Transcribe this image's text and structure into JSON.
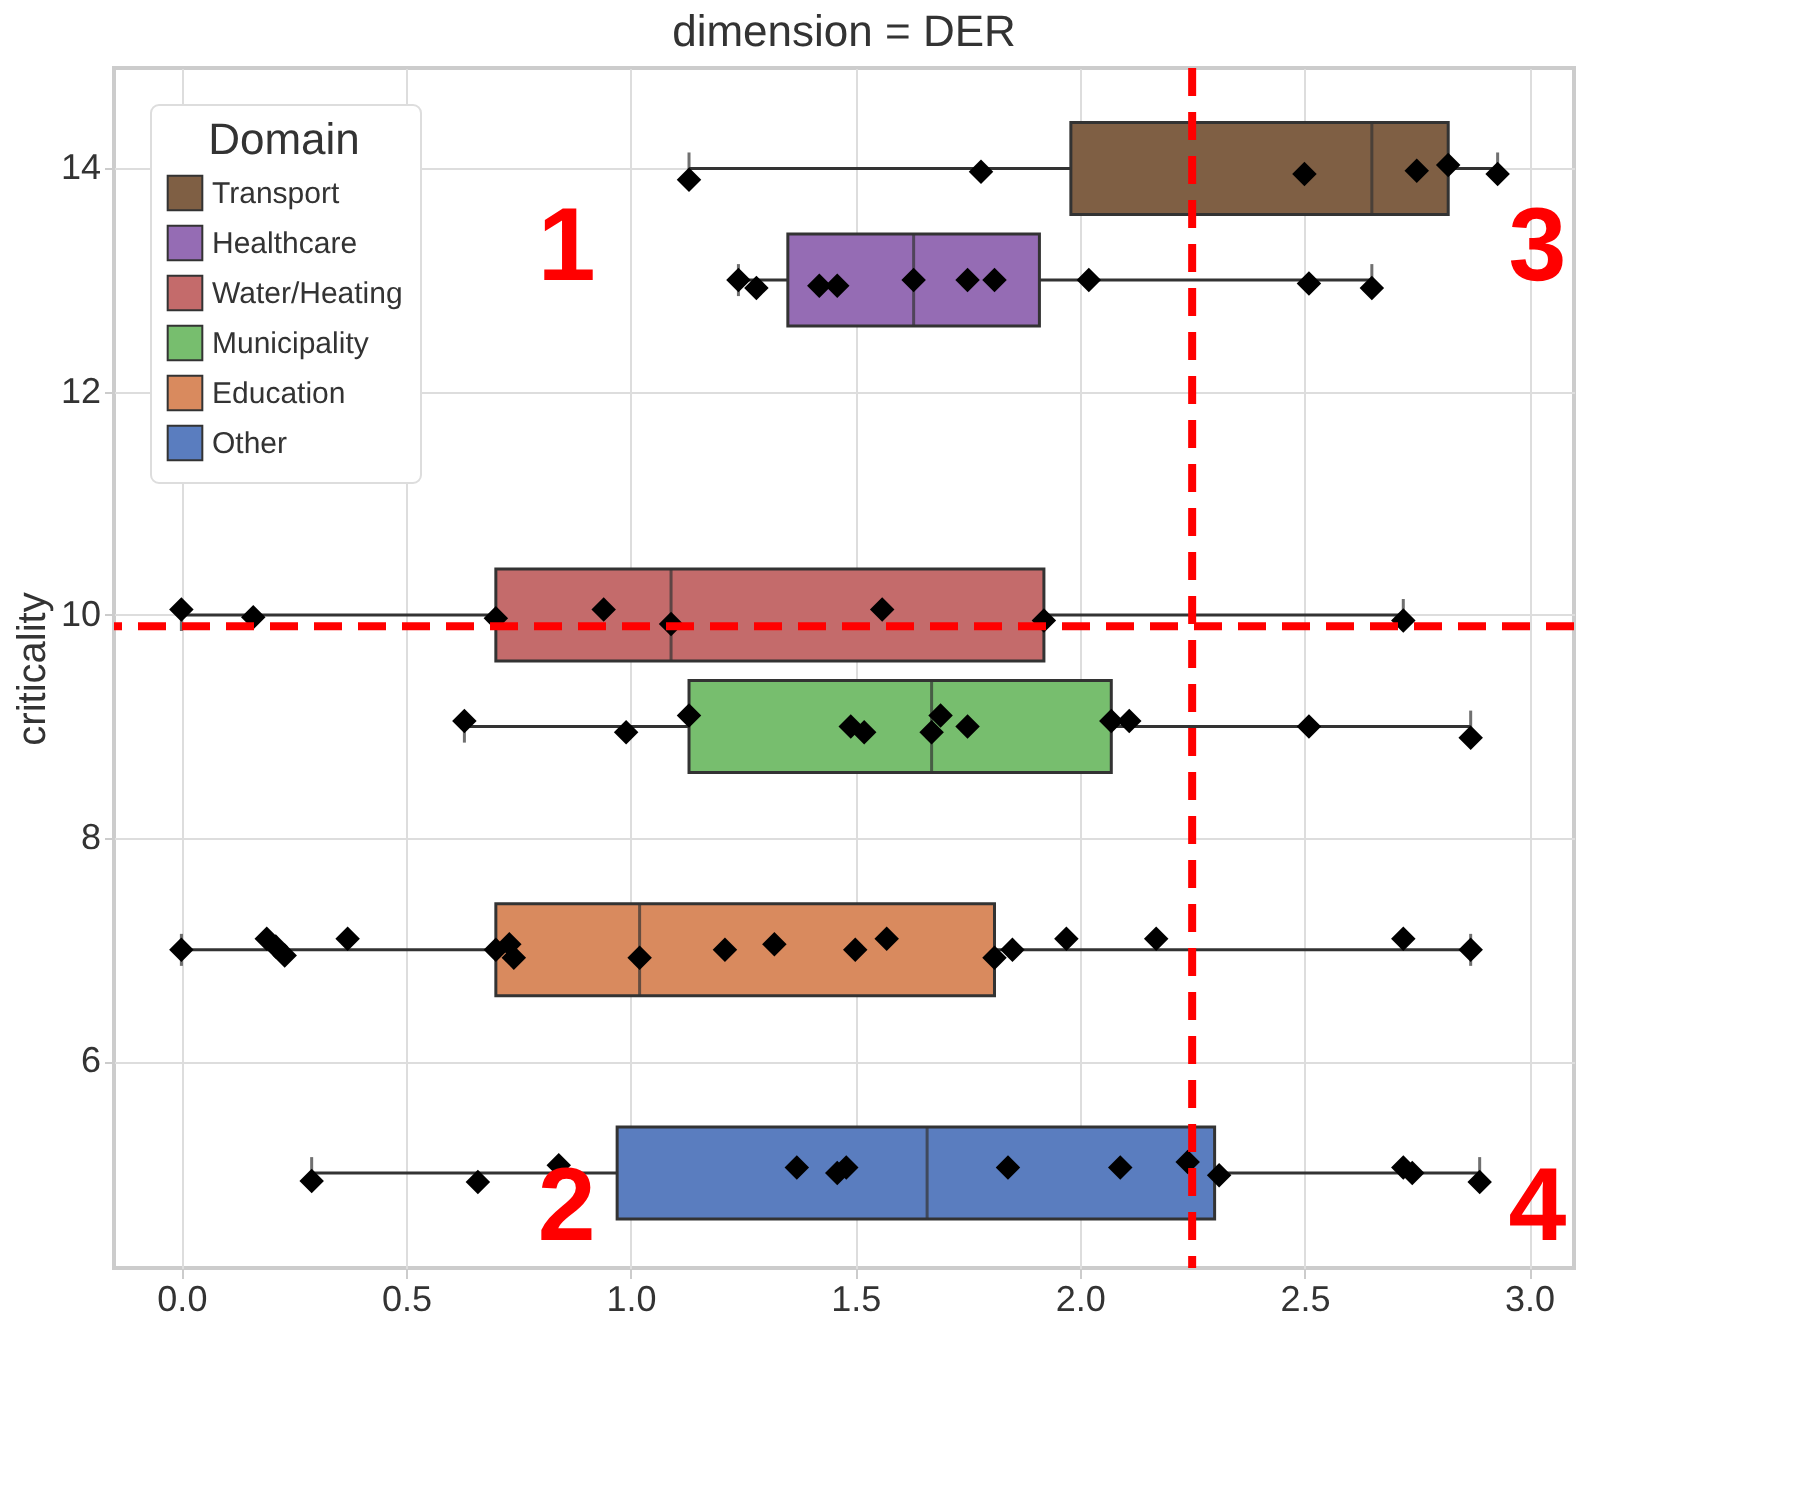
{
  "chart_data": {
    "type": "box",
    "orientation": "horizontal",
    "title": "dimension = DER",
    "ylabel": "criticality",
    "legend_title": "Domain",
    "legend": "top left",
    "grid": true,
    "xlim": [
      -0.15,
      3.1
    ],
    "xticks": [
      {
        "value": 0,
        "label": "0.0"
      },
      {
        "value": 0.5,
        "label": "0.5"
      },
      {
        "value": 1,
        "label": "1.0"
      },
      {
        "value": 1.5,
        "label": "1.5"
      },
      {
        "value": 2,
        "label": "2.0"
      },
      {
        "value": 2.5,
        "label": "2.5"
      },
      {
        "value": 3,
        "label": "3.0"
      }
    ],
    "ylim": [
      4.15,
      14.9
    ],
    "yticks": [
      6,
      8,
      10,
      12,
      14
    ],
    "series": [
      {
        "name": "Transport",
        "color": "#7f5f44",
        "x": [
          14
        ],
        "boxes": [
          {
            "low": 1.13,
            "q1": 1.98,
            "median": 2.65,
            "q3": 2.82,
            "high": 2.93
          }
        ]
      },
      {
        "name": "Healthcare",
        "color": "#956cb4",
        "x": [
          13
        ],
        "boxes": [
          {
            "low": 1.24,
            "q1": 1.35,
            "median": 1.63,
            "q3": 1.91,
            "high": 2.65
          }
        ]
      },
      {
        "name": "Water/Heating",
        "color": "#c46b6b",
        "x": [
          10
        ],
        "boxes": [
          {
            "low": 0.0,
            "q1": 0.7,
            "median": 1.09,
            "q3": 1.92,
            "high": 2.72
          }
        ]
      },
      {
        "name": "Municipality",
        "color": "#77be6e",
        "x": [
          9
        ],
        "boxes": [
          {
            "low": 0.63,
            "q1": 1.13,
            "median": 1.67,
            "q3": 2.07,
            "high": 2.87
          }
        ]
      },
      {
        "name": "Education",
        "color": "#d98a5e",
        "x": [
          7
        ],
        "boxes": [
          {
            "low": 0.0,
            "q1": 0.7,
            "median": 1.02,
            "q3": 1.81,
            "high": 2.87
          }
        ]
      },
      {
        "name": "Other",
        "color": "#5a7dbf",
        "x": [
          5
        ],
        "boxes": [
          {
            "low": 0.29,
            "q1": 0.97,
            "median": 1.66,
            "q3": 2.3,
            "high": 2.89
          }
        ]
      },
      {
        "type": "scatter",
        "color": "#000000",
        "marker": "diamond",
        "values": [
          1.13,
          1.78,
          2.5,
          2.75,
          2.82,
          2.93
        ],
        "x": [
          13.9,
          13.97,
          13.95,
          13.98,
          14.03,
          13.95
        ]
      },
      {
        "type": "scatter",
        "color": "#000000",
        "marker": "diamond",
        "values": [
          1.24,
          1.28,
          1.42,
          1.46,
          1.63,
          1.75,
          1.81,
          2.02,
          2.51,
          2.65
        ],
        "x": [
          13.0,
          12.93,
          12.95,
          12.95,
          13.0,
          13.0,
          13.0,
          13.0,
          12.97,
          12.93
        ]
      },
      {
        "type": "scatter",
        "color": "#000000",
        "marker": "diamond",
        "values": [
          0.0,
          0.16,
          0.7,
          0.94,
          1.09,
          1.56,
          1.92,
          2.72
        ],
        "x": [
          10.05,
          9.98,
          9.97,
          10.05,
          9.92,
          10.05,
          9.95,
          9.95
        ]
      },
      {
        "type": "scatter",
        "color": "#000000",
        "marker": "diamond",
        "values": [
          0.63,
          0.99,
          1.13,
          1.49,
          1.52,
          1.67,
          1.69,
          1.75,
          2.07,
          2.11,
          2.51,
          2.87
        ],
        "x": [
          9.05,
          8.95,
          9.1,
          9.0,
          8.95,
          8.95,
          9.1,
          9.0,
          9.05,
          9.05,
          9.0,
          8.9
        ]
      },
      {
        "type": "scatter",
        "color": "#000000",
        "marker": "diamond",
        "values": [
          0.0,
          0.19,
          0.21,
          0.23,
          0.37,
          0.7,
          0.73,
          0.74,
          1.02,
          1.21,
          1.32,
          1.5,
          1.57,
          1.81,
          1.85,
          1.97,
          2.17,
          2.72,
          2.87
        ],
        "x": [
          7.0,
          7.1,
          7.03,
          6.95,
          7.1,
          7.0,
          7.05,
          6.93,
          6.93,
          7.0,
          7.05,
          7.0,
          7.1,
          6.93,
          7.0,
          7.1,
          7.1,
          7.1,
          7.0
        ]
      },
      {
        "type": "scatter",
        "color": "#000000",
        "marker": "diamond",
        "values": [
          0.29,
          0.66,
          0.84,
          1.37,
          1.46,
          1.48,
          1.84,
          2.09,
          2.24,
          2.31,
          2.72,
          2.74,
          2.89
        ],
        "x": [
          4.93,
          4.92,
          5.07,
          5.05,
          5.0,
          5.05,
          5.05,
          5.05,
          5.1,
          4.98,
          5.05,
          5.0,
          4.92
        ]
      }
    ],
    "ref_lines": [
      {
        "axis": "x",
        "value": 2.25,
        "color": "#ff0000",
        "line_style": "dashed"
      },
      {
        "axis": "y",
        "value": 9.9,
        "color": "#ff0000",
        "line_style": "dashed"
      }
    ],
    "annotations": [
      "1",
      "2",
      "3",
      "4"
    ]
  }
}
